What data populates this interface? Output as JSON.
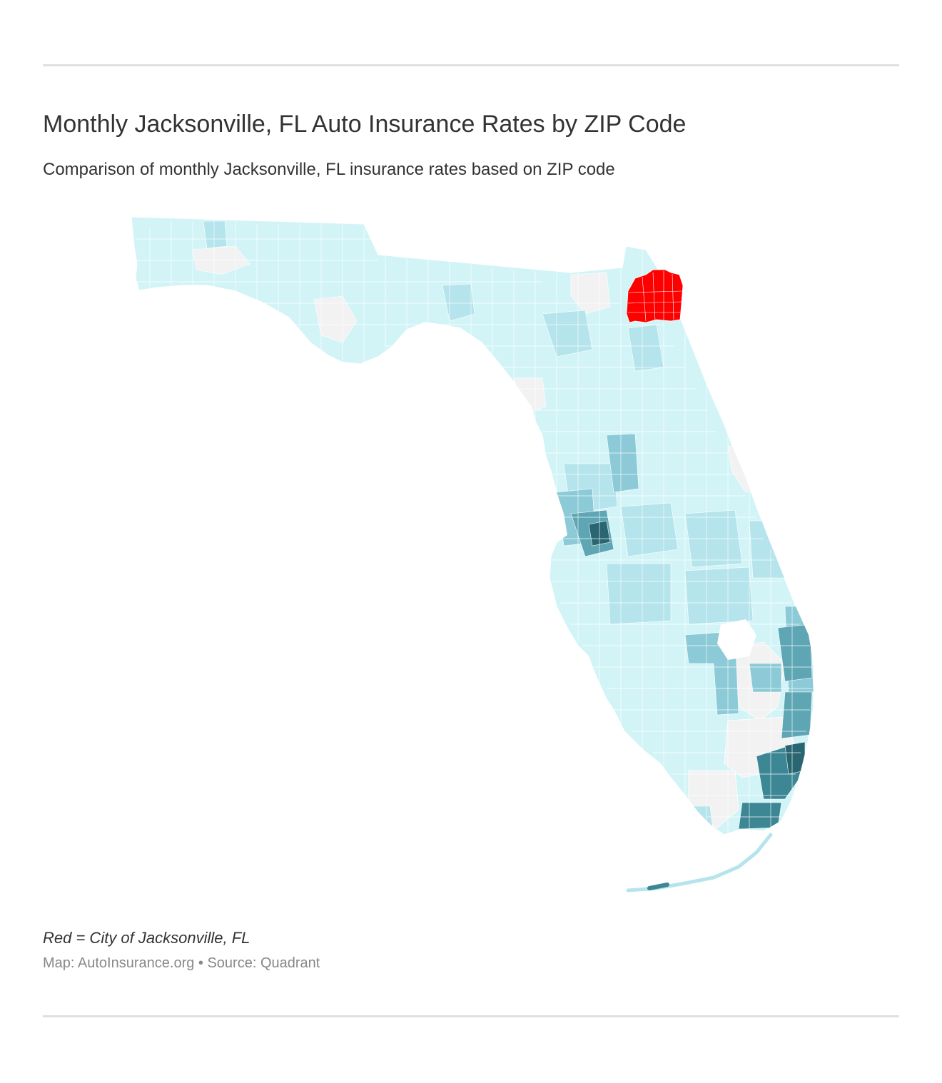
{
  "header": {
    "title": "Monthly Jacksonville, FL Auto Insurance Rates by ZIP Code",
    "subtitle": "Comparison of monthly Jacksonville, FL insurance rates based on ZIP code"
  },
  "map": {
    "region": "Florida",
    "highlight_region": "City of Jacksonville, FL",
    "colors": {
      "highlight": "#ff0000",
      "no_data": "#f2f2f2",
      "tier_1": "#d2f4f7",
      "tier_2": "#b5e4ec",
      "tier_3": "#8ccad7",
      "tier_4": "#5ea6b4",
      "tier_5": "#3d8795",
      "tier_6": "#2a6572",
      "boundary": "#ffffff"
    }
  },
  "footer": {
    "legend_note": "Red = City of Jacksonville, FL",
    "source": "Map: AutoInsurance.org • Source: Quadrant"
  }
}
